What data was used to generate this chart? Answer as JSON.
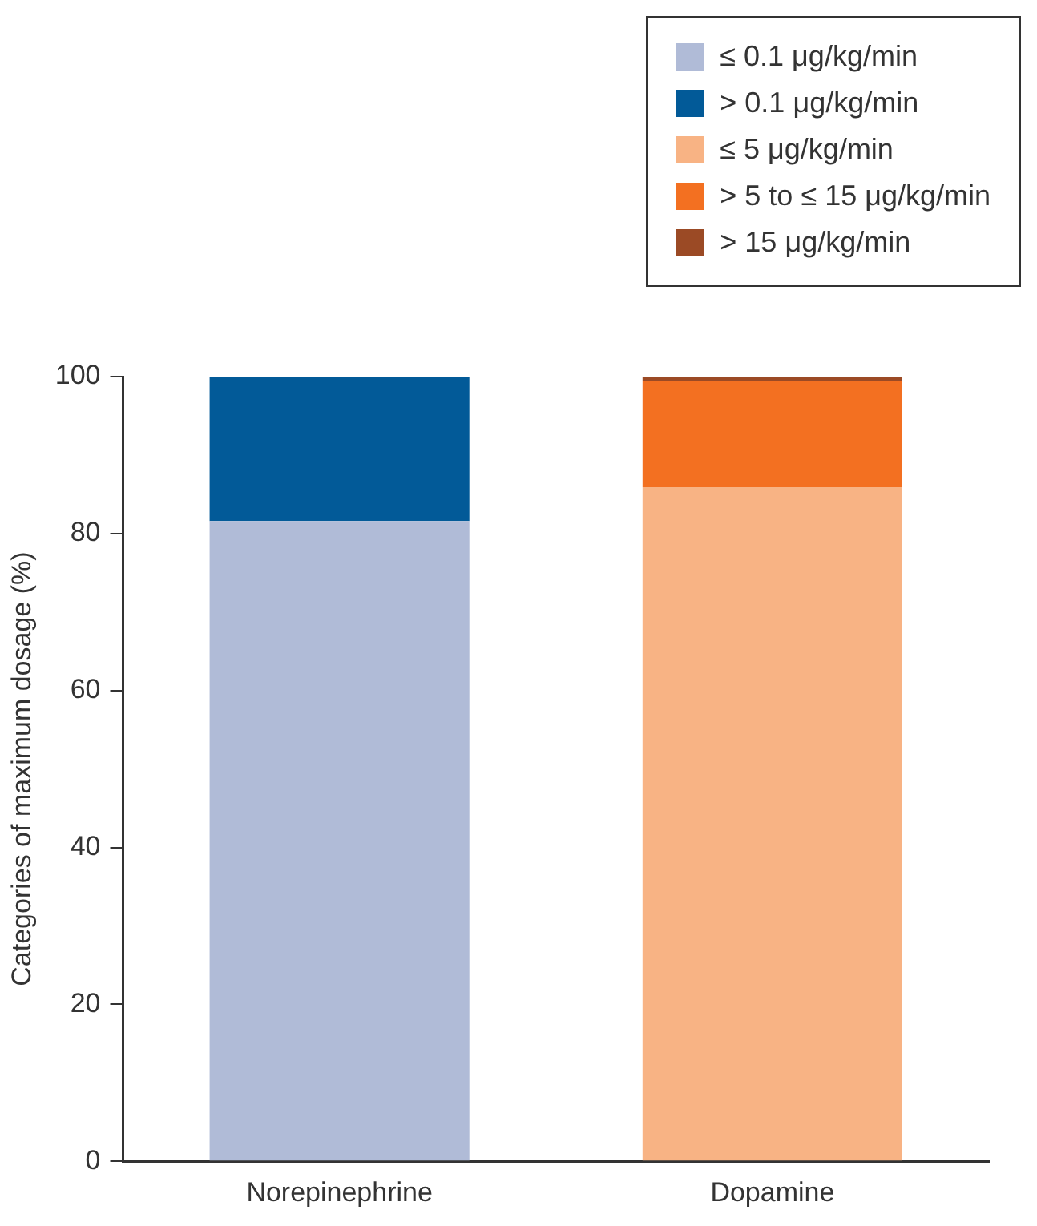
{
  "chart_data": {
    "type": "bar",
    "stacked": true,
    "ylabel": "Categories of maximum dosage (%)",
    "categories": [
      "Norepinephrine",
      "Dopamine"
    ],
    "series": [
      {
        "name": "≤ 0.1 μg/kg/min",
        "color": "#b0bbd7",
        "values": [
          81.6,
          null
        ]
      },
      {
        "name": "> 0.1 μg/kg/min",
        "color": "#025a98",
        "values": [
          18.4,
          null
        ]
      },
      {
        "name": "≤ 5 μg/kg/min",
        "color": "#f8b384",
        "values": [
          null,
          85.9
        ]
      },
      {
        "name": "> 5 to ≤ 15 μg/kg/min",
        "color": "#f37021",
        "values": [
          null,
          13.5
        ]
      },
      {
        "name": "> 15 μg/kg/min",
        "color": "#9b4a25",
        "values": [
          null,
          0.6
        ]
      }
    ],
    "ylim": [
      0,
      100
    ],
    "yticks": [
      0,
      20,
      40,
      60,
      80,
      100
    ],
    "grid": false,
    "legend": "top right"
  }
}
